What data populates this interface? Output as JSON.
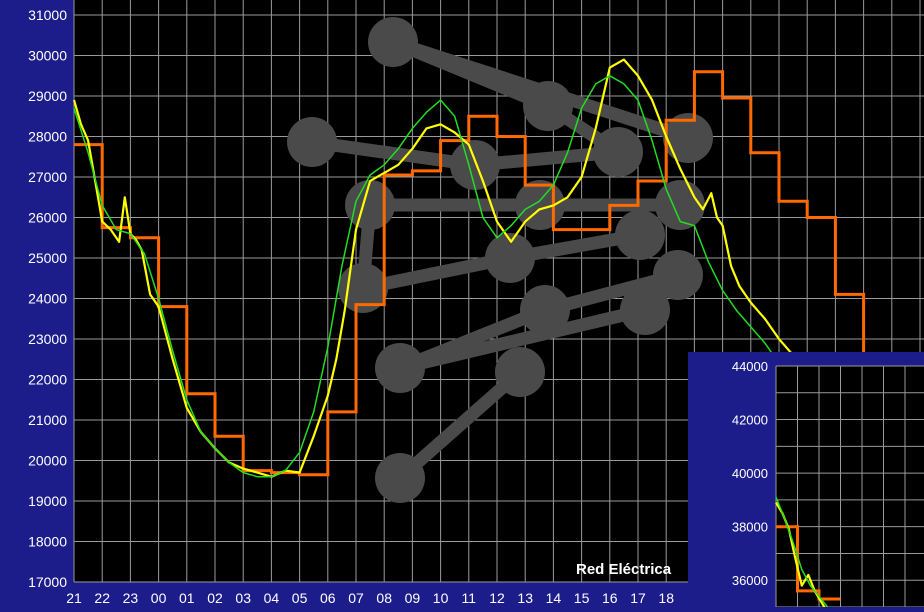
{
  "colors": {
    "frame": "#1c1c8a",
    "plot_bg": "#000000",
    "grid": "#9a9a9a",
    "tick_text": "#ffffff",
    "watermark": "#4a4a4a",
    "hourly_steps": "#ff6a00",
    "real_demand": "#ffff00",
    "forecast": "#22dd22"
  },
  "watermark_text": "Red Eléctrica",
  "watermark_icon": "red-electrica-network-logo",
  "chart_data": [
    {
      "type": "line",
      "title": "",
      "xlabel": "",
      "ylabel": "",
      "ylim": [
        17000,
        31000
      ],
      "yticks": [
        17000,
        18000,
        19000,
        20000,
        21000,
        22000,
        23000,
        24000,
        25000,
        26000,
        27000,
        28000,
        29000,
        30000,
        31000
      ],
      "xtick_labels": [
        "21",
        "22",
        "23",
        "00",
        "01",
        "02",
        "03",
        "04",
        "05",
        "06",
        "07",
        "08",
        "09",
        "10",
        "11",
        "12",
        "13",
        "14",
        "15",
        "16",
        "17",
        "18"
      ],
      "grid": true,
      "series": [
        {
          "key": "hourly_steps",
          "style": "step",
          "color": "#ff6a00",
          "values": [
            27800,
            25750,
            25500,
            23800,
            21650,
            20600,
            19750,
            19700,
            19650,
            21200,
            23850,
            27050,
            27150,
            27900,
            28500,
            28000,
            26800,
            25700,
            25700,
            26300,
            26900,
            28400,
            29600,
            28950,
            27600,
            26400,
            26000,
            24100,
            22500
          ]
        },
        {
          "key": "real_demand",
          "style": "line",
          "color": "#ffff00",
          "x": [
            0,
            0.25,
            0.5,
            0.75,
            1,
            1.3,
            1.6,
            1.8,
            2.0,
            2.2,
            2.4,
            2.7,
            3,
            3.5,
            4,
            4.5,
            5,
            5.5,
            6,
            6.5,
            7,
            7.5,
            8,
            8.5,
            9,
            9.3,
            9.6,
            10,
            10.5,
            11,
            11.5,
            12,
            12.5,
            13,
            13.5,
            14,
            14.5,
            15,
            15.5,
            16,
            16.5,
            17,
            17.5,
            18,
            18.5,
            19,
            19.5,
            20,
            20.5,
            21,
            21.5,
            22,
            22.3,
            22.6,
            22.8,
            23,
            23.3,
            23.6,
            24,
            24.5,
            25,
            25.5,
            26,
            26.3,
            26.6,
            27,
            27.5,
            28
          ],
          "y": [
            28900,
            28300,
            27900,
            26900,
            25900,
            25700,
            25400,
            26500,
            25600,
            25450,
            25200,
            24100,
            23800,
            22500,
            21300,
            20700,
            20300,
            19950,
            19800,
            19700,
            19600,
            19750,
            19700,
            20600,
            21600,
            22500,
            23700,
            25700,
            26900,
            27100,
            27300,
            27700,
            28200,
            28300,
            28100,
            27800,
            26900,
            25900,
            25400,
            25900,
            26200,
            26300,
            26500,
            27000,
            28200,
            29700,
            29900,
            29500,
            28900,
            28000,
            27200,
            26500,
            26200,
            26600,
            26000,
            25800,
            24800,
            24300,
            23900,
            23500,
            23000,
            22600,
            22200,
            21600,
            20800,
            20100,
            19300,
            18800
          ]
        },
        {
          "key": "forecast",
          "style": "line",
          "color": "#22dd22",
          "x": [
            0,
            0.5,
            1,
            1.5,
            2,
            2.5,
            3,
            3.5,
            4,
            4.5,
            5,
            5.5,
            6,
            6.5,
            7,
            7.5,
            8,
            8.5,
            9,
            9.5,
            10,
            10.5,
            11,
            11.5,
            12,
            12.5,
            13,
            13.5,
            14,
            14.5,
            15,
            15.5,
            16,
            16.5,
            17,
            17.5,
            18,
            18.5,
            19,
            19.5,
            20,
            20.5,
            21,
            21.5,
            22,
            22.5,
            23,
            23.5,
            24,
            24.5,
            25,
            25.5,
            26,
            26.5,
            27,
            27.5,
            28
          ],
          "y": [
            28700,
            27600,
            26300,
            25700,
            25600,
            25100,
            24000,
            22700,
            21500,
            20700,
            20300,
            19950,
            19700,
            19600,
            19600,
            19750,
            20200,
            21200,
            22800,
            24800,
            26400,
            27050,
            27300,
            27700,
            28200,
            28600,
            28900,
            28500,
            27300,
            26000,
            25500,
            25800,
            26200,
            26400,
            26800,
            27600,
            28700,
            29300,
            29500,
            29300,
            28900,
            27900,
            26700,
            25900,
            25800,
            24900,
            24200,
            23700,
            23300,
            22900,
            22400,
            21700,
            21000,
            20300,
            19600,
            19000,
            18600
          ]
        }
      ]
    },
    {
      "type": "line",
      "title": "",
      "xlabel": "",
      "ylabel": "",
      "ylim": [
        35000,
        44000
      ],
      "yticks": [
        36000,
        38000,
        40000,
        42000,
        44000
      ],
      "grid": true,
      "series": [
        {
          "key": "hourly_steps",
          "style": "step",
          "color": "#ff6a00",
          "values": [
            38000,
            35600,
            35300
          ]
        },
        {
          "key": "real_demand",
          "style": "line",
          "color": "#ffff00",
          "x": [
            0,
            0.3,
            0.6,
            0.9,
            1.2,
            1.5,
            1.8,
            2.1,
            2.4
          ],
          "y": [
            38900,
            38500,
            37900,
            36800,
            35800,
            36200,
            35600,
            35200,
            34800
          ]
        },
        {
          "key": "forecast",
          "style": "line",
          "color": "#22dd22",
          "x": [
            0,
            0.4,
            0.8,
            1.2,
            1.6,
            2.0,
            2.4
          ],
          "y": [
            39100,
            38300,
            37400,
            36400,
            35800,
            35400,
            35000
          ]
        }
      ]
    }
  ]
}
